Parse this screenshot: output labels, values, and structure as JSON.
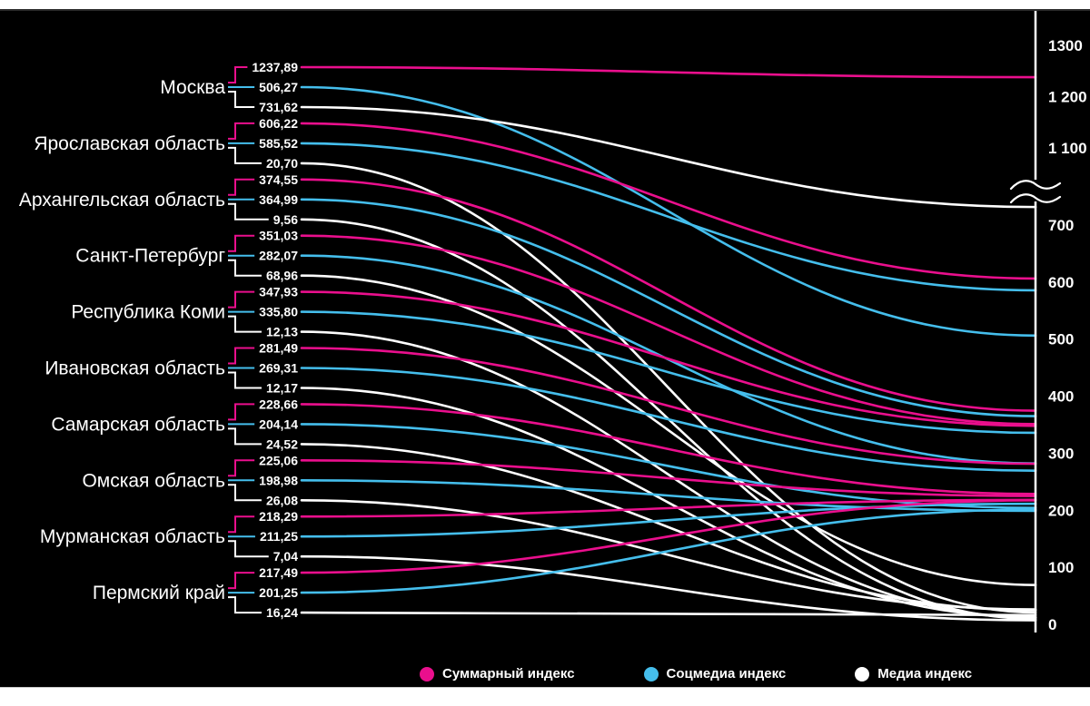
{
  "chart_data": {
    "type": "line",
    "variant": "slopegraph-bump-chart",
    "title": "",
    "background_color": "#000000",
    "legend_position": "bottom",
    "grid": false,
    "series": [
      {
        "key": "summary",
        "name": "Суммарный индекс",
        "color": "#EA0F8D"
      },
      {
        "key": "social",
        "name": "Соцмедиа индекс",
        "color": "#45BEEC"
      },
      {
        "key": "media",
        "name": "Медиа индекс",
        "color": "#FFFFFF"
      }
    ],
    "regions": [
      {
        "name": "Москва",
        "values": [
          1237.89,
          506.27,
          731.62
        ],
        "labels": [
          "1237,89",
          "506,27",
          "731,62"
        ]
      },
      {
        "name": "Ярославская область",
        "values": [
          606.22,
          585.52,
          20.7
        ],
        "labels": [
          "606,22",
          "585,52",
          "20,70"
        ]
      },
      {
        "name": "Архангельская область",
        "values": [
          374.55,
          364.99,
          9.56
        ],
        "labels": [
          "374,55",
          "364,99",
          "9,56"
        ]
      },
      {
        "name": "Санкт-Петербург",
        "values": [
          351.03,
          282.07,
          68.96
        ],
        "labels": [
          "351,03",
          "282,07",
          "68,96"
        ]
      },
      {
        "name": "Республика Коми",
        "values": [
          347.93,
          335.8,
          12.13
        ],
        "labels": [
          "347,93",
          "335,80",
          "12,13"
        ]
      },
      {
        "name": "Ивановская область",
        "values": [
          281.49,
          269.31,
          12.17
        ],
        "labels": [
          "281,49",
          "269,31",
          "12,17"
        ]
      },
      {
        "name": "Самарская область",
        "values": [
          228.66,
          204.14,
          24.52
        ],
        "labels": [
          "228,66",
          "204,14",
          "24,52"
        ]
      },
      {
        "name": "Омская область",
        "values": [
          225.06,
          198.98,
          26.08
        ],
        "labels": [
          "225,06",
          "198,98",
          "26,08"
        ]
      },
      {
        "name": "Мурманская область",
        "values": [
          218.29,
          211.25,
          7.04
        ],
        "labels": [
          "218,29",
          "211,25",
          "7,04"
        ]
      },
      {
        "name": "Пермский край",
        "values": [
          217.49,
          201.25,
          16.24
        ],
        "labels": [
          "217,49",
          "201,25",
          "16,24"
        ]
      }
    ],
    "y_axis": {
      "side": "right",
      "axis_break": true,
      "ticks": [
        {
          "label": "1300",
          "value": 1300
        },
        {
          "label": "1 200",
          "value": 1200
        },
        {
          "label": "1 100",
          "value": 1100
        },
        {
          "label": "700",
          "value": 700
        },
        {
          "label": "600",
          "value": 600
        },
        {
          "label": "500",
          "value": 500
        },
        {
          "label": "400",
          "value": 400
        },
        {
          "label": "300",
          "value": 300
        },
        {
          "label": "200",
          "value": 200
        },
        {
          "label": "100",
          "value": 100
        },
        {
          "label": "0",
          "value": 0
        }
      ]
    }
  }
}
